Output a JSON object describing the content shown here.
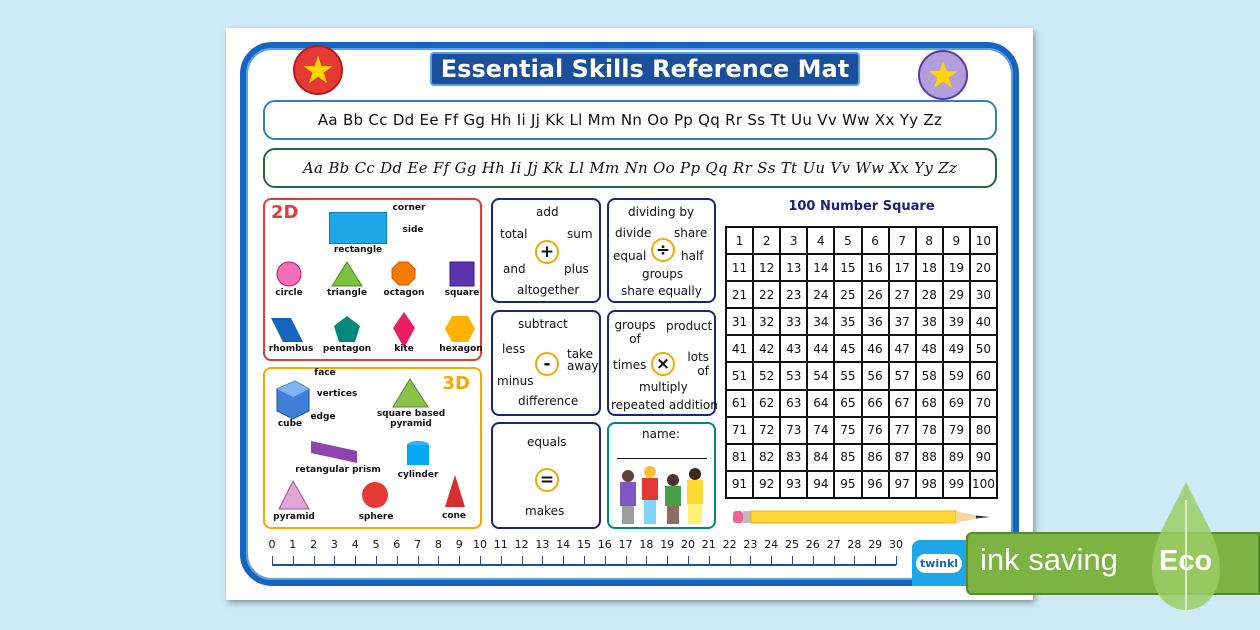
{
  "title": "Essential Skills Reference Mat",
  "alphabet_print": "Aa Bb Cc Dd Ee Ff Gg Hh Ii Jj Kk Ll Mm Nn Oo Pp Qq Rr Ss Tt Uu Vv Ww Xx Yy Zz",
  "alphabet_cursive": "Aa Bb Cc Dd Ee Ff Gg Hh Ii Jj Kk Ll Mm Nn Oo Pp Qq Rr Ss Tt Uu Vv Ww Xx Yy Zz",
  "shapes2d": {
    "heading": "2D",
    "corner": "corner",
    "side": "side",
    "rectangle": "rectangle",
    "circle": "circle",
    "triangle": "triangle",
    "octagon": "octagon",
    "square": "square",
    "rhombus": "rhombus",
    "pentagon": "pentagon",
    "kite": "kite",
    "hexagon": "hexagon"
  },
  "shapes3d": {
    "heading": "3D",
    "face": "face",
    "vertices": "vertices",
    "edge": "edge",
    "cube": "cube",
    "pyramid_sq": "square based pyramid",
    "prism": "retangular prism",
    "cylinder": "cylinder",
    "pyramid": "pyramid",
    "sphere": "sphere",
    "cone": "cone"
  },
  "add": {
    "top": "add",
    "tl": "total",
    "tr": "sum",
    "bl": "and",
    "br": "plus",
    "bottom": "altogether",
    "symbol": "+"
  },
  "divide": {
    "top": "dividing by",
    "tl": "divide",
    "tr": "share",
    "bl": "equal",
    "br": "half",
    "b1": "groups",
    "bottom": "share equally",
    "symbol": "÷"
  },
  "subtract": {
    "top": "subtract",
    "tl": "less",
    "tr": "take away",
    "bl": "minus",
    "bottom": "difference",
    "symbol": "-"
  },
  "multiply": {
    "tl": "groups of",
    "tr": "product",
    "bl": "times",
    "br": "lots of",
    "b1": "multiply",
    "bottom": "repeated addition",
    "symbol": "×"
  },
  "equals": {
    "top": "equals",
    "bottom": "makes",
    "symbol": "="
  },
  "name_label": "name:",
  "number_square_title": "100 Number Square",
  "ruler_max": 30,
  "logo": "twinkl",
  "eco": {
    "text": "ink saving",
    "badge": "Eco"
  },
  "colors": {
    "frame": "#1565c0",
    "title_bg": "#1a4f9c",
    "eco": "#7cb342",
    "box2d": "#e53935",
    "box3d": "#f5a800"
  }
}
